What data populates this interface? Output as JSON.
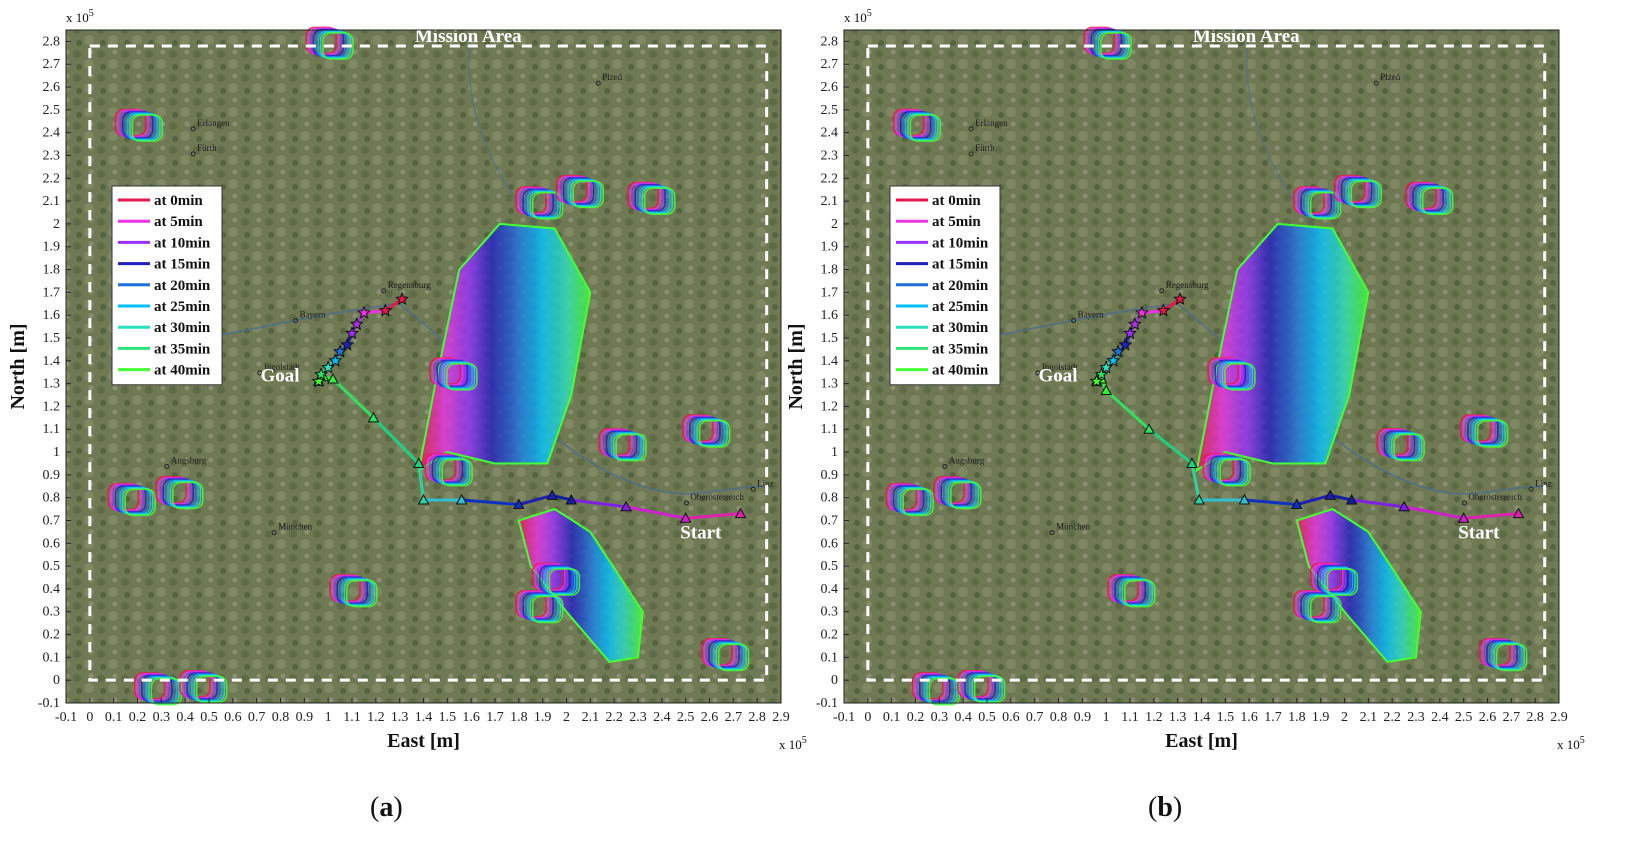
{
  "figure": {
    "panels": [
      {
        "paren_open": "(",
        "letter": "a",
        "paren_close": ")"
      },
      {
        "paren_open": "(",
        "letter": "b",
        "paren_close": ")"
      }
    ]
  },
  "chart_data": [
    {
      "type": "line",
      "title": "",
      "xlabel": "East [m]",
      "ylabel": "North [m]",
      "x_multiplier": "x 10",
      "x_multiplier_exp": "5",
      "y_multiplier": "x 10",
      "y_multiplier_exp": "5",
      "xlim": [
        -0.1,
        2.9
      ],
      "ylim": [
        -0.1,
        2.85
      ],
      "xticks": [
        -0.1,
        0,
        0.1,
        0.2,
        0.3,
        0.4,
        0.5,
        0.6,
        0.7,
        0.8,
        0.9,
        1,
        1.1,
        1.2,
        1.3,
        1.4,
        1.5,
        1.6,
        1.7,
        1.8,
        1.9,
        2,
        2.1,
        2.2,
        2.3,
        2.4,
        2.5,
        2.6,
        2.7,
        2.8,
        2.9
      ],
      "yticks": [
        -0.1,
        0,
        0.1,
        0.2,
        0.3,
        0.4,
        0.5,
        0.6,
        0.7,
        0.8,
        0.9,
        1,
        1.1,
        1.2,
        1.3,
        1.4,
        1.5,
        1.6,
        1.7,
        1.8,
        1.9,
        2,
        2.1,
        2.2,
        2.3,
        2.4,
        2.5,
        2.6,
        2.7,
        2.8
      ],
      "background": "satellite map",
      "grid": false,
      "legend_position": "upper-left",
      "mission_area": {
        "label": "Mission Area",
        "x": [
          0,
          2.84
        ],
        "y": [
          0,
          2.78
        ],
        "style": "dashed",
        "color": "#ffffff"
      },
      "annotations": [
        {
          "text": "Goal",
          "x": 0.88,
          "y": 1.31
        },
        {
          "text": "Start",
          "x": 2.65,
          "y": 0.62
        }
      ],
      "map_labels": [
        {
          "text": "Plzeň",
          "x": 2.15,
          "y": 2.63
        },
        {
          "text": "Erlangen",
          "x": 0.45,
          "y": 2.43
        },
        {
          "text": "Fürth",
          "x": 0.45,
          "y": 2.32
        },
        {
          "text": "Regensburg",
          "x": 1.25,
          "y": 1.72
        },
        {
          "text": "Ingolstadt",
          "x": 0.73,
          "y": 1.36
        },
        {
          "text": "Augsburg",
          "x": 0.34,
          "y": 0.95
        },
        {
          "text": "München",
          "x": 0.79,
          "y": 0.66
        },
        {
          "text": "Linz",
          "x": 2.8,
          "y": 0.85
        },
        {
          "text": "Oberösterreich",
          "x": 2.52,
          "y": 0.79
        },
        {
          "text": "Bayern",
          "x": 0.88,
          "y": 1.59
        }
      ],
      "legend": [
        {
          "label": "at   0min",
          "color": "#e6194b"
        },
        {
          "label": "at   5min",
          "color": "#f032e6"
        },
        {
          "label": "at 10min",
          "color": "#9b30ff"
        },
        {
          "label": "at 15min",
          "color": "#2020c0"
        },
        {
          "label": "at 20min",
          "color": "#1f6fe0"
        },
        {
          "label": "at 25min",
          "color": "#00bfff"
        },
        {
          "label": "at 30min",
          "color": "#2de0c0"
        },
        {
          "label": "at 35min",
          "color": "#2ee07a"
        },
        {
          "label": "at 40min",
          "color": "#44ff33"
        }
      ],
      "series": [
        {
          "x": [
            2.73,
            2.5,
            2.25,
            2.02,
            1.94,
            1.8,
            1.56,
            1.4,
            1.38,
            1.19,
            1.02,
            0.98,
            0.96
          ],
          "y": [
            0.73,
            0.71,
            0.76,
            0.79,
            0.81,
            0.77,
            0.79,
            0.79,
            0.95,
            1.15,
            1.32,
            1.33,
            1.31
          ],
          "markers": "triangle"
        },
        {
          "x": [
            0.96,
            0.97,
            1.0,
            1.03,
            1.05,
            1.08,
            1.1,
            1.12,
            1.15,
            1.24,
            1.31
          ],
          "y": [
            1.31,
            1.34,
            1.37,
            1.4,
            1.44,
            1.47,
            1.52,
            1.56,
            1.61,
            1.62,
            1.67
          ],
          "markers": "star"
        }
      ],
      "weather_cells": [
        {
          "x": 0.2,
          "y": 2.44
        },
        {
          "x": 1.0,
          "y": 2.8
        },
        {
          "x": 0.17,
          "y": 0.8
        },
        {
          "x": 0.37,
          "y": 0.83
        },
        {
          "x": 1.1,
          "y": 0.4
        },
        {
          "x": 0.28,
          "y": -0.03
        },
        {
          "x": 0.47,
          "y": -0.02
        },
        {
          "x": 1.52,
          "y": 1.35
        },
        {
          "x": 1.88,
          "y": 2.1
        },
        {
          "x": 2.05,
          "y": 2.15
        },
        {
          "x": 2.35,
          "y": 2.12
        },
        {
          "x": 2.58,
          "y": 1.1
        },
        {
          "x": 2.23,
          "y": 1.04
        },
        {
          "x": 1.95,
          "y": 0.45
        },
        {
          "x": 1.88,
          "y": 0.33
        },
        {
          "x": 2.66,
          "y": 0.12
        },
        {
          "x": 1.5,
          "y": 0.93
        }
      ]
    },
    {
      "type": "line",
      "title": "",
      "xlabel": "East [m]",
      "ylabel": "North [m]",
      "x_multiplier": "x 10",
      "x_multiplier_exp": "5",
      "y_multiplier": "x 10",
      "y_multiplier_exp": "5",
      "xlim": [
        -0.1,
        2.9
      ],
      "ylim": [
        -0.1,
        2.85
      ],
      "xticks": [
        -0.1,
        0,
        0.1,
        0.2,
        0.3,
        0.4,
        0.5,
        0.6,
        0.7,
        0.8,
        0.9,
        1,
        1.1,
        1.2,
        1.3,
        1.4,
        1.5,
        1.6,
        1.7,
        1.8,
        1.9,
        2,
        2.1,
        2.2,
        2.3,
        2.4,
        2.5,
        2.6,
        2.7,
        2.8,
        2.9
      ],
      "yticks": [
        -0.1,
        0,
        0.1,
        0.2,
        0.3,
        0.4,
        0.5,
        0.6,
        0.7,
        0.8,
        0.9,
        1,
        1.1,
        1.2,
        1.3,
        1.4,
        1.5,
        1.6,
        1.7,
        1.8,
        1.9,
        2,
        2.1,
        2.2,
        2.3,
        2.4,
        2.5,
        2.6,
        2.7,
        2.8
      ],
      "background": "satellite map",
      "grid": false,
      "legend_position": "upper-left",
      "mission_area": {
        "label": "Mission Area",
        "x": [
          0,
          2.84
        ],
        "y": [
          0,
          2.78
        ],
        "style": "dashed",
        "color": "#ffffff"
      },
      "annotations": [
        {
          "text": "Goal",
          "x": 0.88,
          "y": 1.31
        },
        {
          "text": "Start",
          "x": 2.65,
          "y": 0.62
        }
      ],
      "map_labels": [
        {
          "text": "Plzeň",
          "x": 2.15,
          "y": 2.63
        },
        {
          "text": "Erlangen",
          "x": 0.45,
          "y": 2.43
        },
        {
          "text": "Fürth",
          "x": 0.45,
          "y": 2.32
        },
        {
          "text": "Regensburg",
          "x": 1.25,
          "y": 1.72
        },
        {
          "text": "Ingolstadt",
          "x": 0.73,
          "y": 1.36
        },
        {
          "text": "Augsburg",
          "x": 0.34,
          "y": 0.95
        },
        {
          "text": "München",
          "x": 0.79,
          "y": 0.66
        },
        {
          "text": "Linz",
          "x": 2.8,
          "y": 0.85
        },
        {
          "text": "Oberösterreich",
          "x": 2.52,
          "y": 0.79
        },
        {
          "text": "Bayern",
          "x": 0.88,
          "y": 1.59
        }
      ],
      "legend": [
        {
          "label": "at   0min",
          "color": "#e6194b"
        },
        {
          "label": "at   5min",
          "color": "#f032e6"
        },
        {
          "label": "at 10min",
          "color": "#9b30ff"
        },
        {
          "label": "at 15min",
          "color": "#2020c0"
        },
        {
          "label": "at 20min",
          "color": "#1f6fe0"
        },
        {
          "label": "at 25min",
          "color": "#00bfff"
        },
        {
          "label": "at 30min",
          "color": "#2de0c0"
        },
        {
          "label": "at 35min",
          "color": "#2ee07a"
        },
        {
          "label": "at 40min",
          "color": "#44ff33"
        }
      ],
      "series": [
        {
          "x": [
            2.73,
            2.5,
            2.25,
            2.03,
            1.94,
            1.8,
            1.58,
            1.39,
            1.36,
            1.18,
            1.0,
            0.98,
            0.96
          ],
          "y": [
            0.73,
            0.71,
            0.76,
            0.79,
            0.81,
            0.77,
            0.79,
            0.79,
            0.95,
            1.1,
            1.27,
            1.32,
            1.31
          ],
          "markers": "triangle"
        },
        {
          "x": [
            0.96,
            0.98,
            1.0,
            1.03,
            1.05,
            1.08,
            1.1,
            1.12,
            1.15,
            1.24,
            1.31
          ],
          "y": [
            1.31,
            1.34,
            1.37,
            1.4,
            1.44,
            1.47,
            1.52,
            1.56,
            1.61,
            1.62,
            1.67
          ],
          "markers": "star"
        }
      ],
      "weather_cells": [
        {
          "x": 0.2,
          "y": 2.44
        },
        {
          "x": 1.0,
          "y": 2.8
        },
        {
          "x": 0.17,
          "y": 0.8
        },
        {
          "x": 0.37,
          "y": 0.83
        },
        {
          "x": 1.1,
          "y": 0.4
        },
        {
          "x": 0.28,
          "y": -0.03
        },
        {
          "x": 0.47,
          "y": -0.02
        },
        {
          "x": 1.52,
          "y": 1.35
        },
        {
          "x": 1.88,
          "y": 2.1
        },
        {
          "x": 2.05,
          "y": 2.15
        },
        {
          "x": 2.35,
          "y": 2.12
        },
        {
          "x": 2.58,
          "y": 1.1
        },
        {
          "x": 2.23,
          "y": 1.04
        },
        {
          "x": 1.95,
          "y": 0.45
        },
        {
          "x": 1.88,
          "y": 0.33
        },
        {
          "x": 2.66,
          "y": 0.12
        },
        {
          "x": 1.5,
          "y": 0.93
        }
      ]
    }
  ]
}
